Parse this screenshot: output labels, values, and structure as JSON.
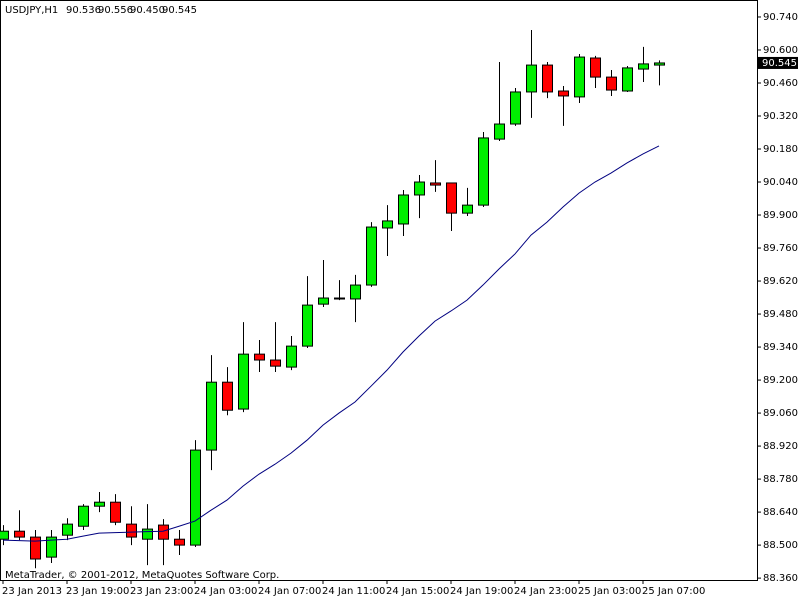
{
  "chart_data": {
    "type": "candlestick",
    "title": "USDJPY,H1",
    "quote": [
      "90.536",
      "90.556",
      "90.450",
      "90.545"
    ],
    "footer": "MetaTrader, © 2001-2012, MetaQuotes Software Corp.",
    "categories": [
      "23 Jan 2013",
      null,
      null,
      null,
      "23 Jan 19:00",
      null,
      null,
      null,
      "23 Jan 23:00",
      null,
      null,
      null,
      "24 Jan 03:00",
      null,
      null,
      null,
      "24 Jan 07:00",
      null,
      null,
      null,
      "24 Jan 11:00",
      null,
      null,
      null,
      "24 Jan 15:00",
      null,
      null,
      null,
      "24 Jan 19:00",
      null,
      null,
      null,
      "24 Jan 23:00",
      null,
      null,
      null,
      "25 Jan 03:00",
      null,
      null,
      null,
      "25 Jan 07:00",
      null
    ],
    "open": [
      88.525,
      88.559,
      88.534,
      88.449,
      88.542,
      88.58,
      88.665,
      88.682,
      88.589,
      88.525,
      88.585,
      88.525,
      88.5,
      88.903,
      89.191,
      89.077,
      89.31,
      89.285,
      89.255,
      89.344,
      89.522,
      89.548,
      89.544,
      89.603,
      89.845,
      89.862,
      89.985,
      90.036,
      90.036,
      89.908,
      89.942,
      90.222,
      90.286,
      90.422,
      90.536,
      90.426,
      90.401,
      90.566,
      90.485,
      90.426,
      90.519,
      90.536
    ],
    "high": [
      88.585,
      88.648,
      88.564,
      88.564,
      88.614,
      88.674,
      88.725,
      88.716,
      88.665,
      88.674,
      88.61,
      88.564,
      88.945,
      89.306,
      89.255,
      89.446,
      89.37,
      89.446,
      89.387,
      89.641,
      89.709,
      89.624,
      89.646,
      89.87,
      89.942,
      90.006,
      90.07,
      90.133,
      90.036,
      90.015,
      90.252,
      90.549,
      90.439,
      90.685,
      90.549,
      90.447,
      90.583,
      90.575,
      90.515,
      90.532,
      90.613,
      90.556
    ],
    "low": [
      88.5,
      88.521,
      88.402,
      88.424,
      88.521,
      88.564,
      88.64,
      88.585,
      88.5,
      88.415,
      88.415,
      88.458,
      88.492,
      88.818,
      89.051,
      89.064,
      89.234,
      89.234,
      89.242,
      89.336,
      89.51,
      89.539,
      89.446,
      89.595,
      89.726,
      89.811,
      89.887,
      89.998,
      89.832,
      89.896,
      89.934,
      90.214,
      90.278,
      90.312,
      90.396,
      90.278,
      90.375,
      90.439,
      90.405,
      90.422,
      90.464,
      90.45
    ],
    "close": [
      88.559,
      88.534,
      88.441,
      88.534,
      88.589,
      88.665,
      88.682,
      88.597,
      88.534,
      88.568,
      88.525,
      88.5,
      88.903,
      89.191,
      89.072,
      89.31,
      89.285,
      89.259,
      89.344,
      89.518,
      89.548,
      89.544,
      89.603,
      89.849,
      89.875,
      89.985,
      90.04,
      90.027,
      89.908,
      89.942,
      90.227,
      90.286,
      90.422,
      90.536,
      90.422,
      90.405,
      90.57,
      90.485,
      90.43,
      90.524,
      90.541,
      90.545
    ],
    "up_color": "#00ee00",
    "down_color": "#ff0000",
    "ma_values": [
      88.521,
      88.519,
      88.517,
      88.521,
      88.525,
      88.538,
      88.551,
      88.553,
      88.555,
      88.557,
      88.559,
      88.58,
      88.602,
      88.648,
      88.691,
      88.75,
      88.801,
      88.843,
      88.89,
      88.945,
      89.009,
      89.06,
      89.107,
      89.174,
      89.242,
      89.319,
      89.387,
      89.45,
      89.493,
      89.539,
      89.603,
      89.671,
      89.735,
      89.815,
      89.87,
      89.934,
      89.993,
      90.04,
      90.078,
      90.121,
      90.159,
      90.193
    ],
    "ma_color": "#000080",
    "last_price": 90.545,
    "last_price_label": "90.545",
    "ylim": [
      88.352,
      90.812
    ],
    "yticks": [
      {
        "value": 90.74,
        "label": "90.740"
      },
      {
        "value": 90.6,
        "label": "90.600"
      },
      {
        "value": 90.46,
        "label": "90.460"
      },
      {
        "value": 90.32,
        "label": "90.320"
      },
      {
        "value": 90.18,
        "label": "90.180"
      },
      {
        "value": 90.04,
        "label": "90.040"
      },
      {
        "value": 89.9,
        "label": "89.900"
      },
      {
        "value": 89.76,
        "label": "89.760"
      },
      {
        "value": 89.62,
        "label": "89.620"
      },
      {
        "value": 89.48,
        "label": "89.480"
      },
      {
        "value": 89.34,
        "label": "89.340"
      },
      {
        "value": 89.2,
        "label": "89.200"
      },
      {
        "value": 89.06,
        "label": "89.060"
      },
      {
        "value": 88.92,
        "label": "88.920"
      },
      {
        "value": 88.78,
        "label": "88.780"
      },
      {
        "value": 88.64,
        "label": "88.640"
      },
      {
        "value": 88.5,
        "label": "88.500"
      },
      {
        "value": 88.36,
        "label": "88.360"
      }
    ],
    "grid": false
  }
}
